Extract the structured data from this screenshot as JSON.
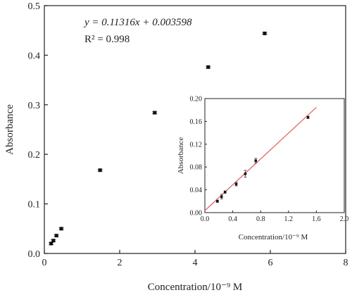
{
  "chart_data": [
    {
      "type": "scatter",
      "xlabel": "Concentration/10⁻⁹ M",
      "ylabel": "Absorbance",
      "xlim": [
        0,
        8
      ],
      "ylim": [
        0,
        0.5
      ],
      "xticks": [
        "0",
        "2",
        "4",
        "6",
        "8"
      ],
      "yticks": [
        "0.0",
        "0.1",
        "0.2",
        "0.3",
        "0.4",
        "0.5"
      ],
      "annotation_equation": "y = 0.11316x + 0.003598",
      "annotation_r2": "R² = 0.998",
      "grid": false,
      "points": [
        {
          "x": 0.18,
          "y": 0.02,
          "err": 0.002
        },
        {
          "x": 0.24,
          "y": 0.026,
          "err": 0.002
        },
        {
          "x": 0.32,
          "y": 0.036,
          "err": 0.002
        },
        {
          "x": 0.45,
          "y": 0.05,
          "err": 0.002
        },
        {
          "x": 1.48,
          "y": 0.168,
          "err": 0.002
        },
        {
          "x": 2.93,
          "y": 0.284,
          "err": 0.002
        },
        {
          "x": 4.35,
          "y": 0.376,
          "err": 0.002
        },
        {
          "x": 5.85,
          "y": 0.444,
          "err": 0.002
        }
      ]
    },
    {
      "type": "scatter",
      "xlabel": "Concentration/10⁻⁹ M",
      "ylabel": "Absorbance",
      "xlim": [
        0,
        2.0
      ],
      "ylim": [
        0,
        0.2
      ],
      "xticks": [
        "0.0",
        "0.4",
        "0.8",
        "1.2",
        "1.6",
        "2.0"
      ],
      "yticks": [
        "0.00",
        "0.04",
        "0.08",
        "0.12",
        "0.16",
        "0.20"
      ],
      "grid": false,
      "fit_line": {
        "slope": 0.11316,
        "intercept": 0.003598,
        "x_range": [
          0,
          1.6
        ],
        "color": "#e06666"
      },
      "points": [
        {
          "x": 0.18,
          "y": 0.02,
          "err": 0.002
        },
        {
          "x": 0.24,
          "y": 0.028,
          "err": 0.004
        },
        {
          "x": 0.29,
          "y": 0.036,
          "err": 0.002
        },
        {
          "x": 0.45,
          "y": 0.05,
          "err": 0.003
        },
        {
          "x": 0.58,
          "y": 0.068,
          "err": 0.006
        },
        {
          "x": 0.73,
          "y": 0.091,
          "err": 0.004
        },
        {
          "x": 1.48,
          "y": 0.167,
          "err": 0.002
        }
      ]
    }
  ]
}
